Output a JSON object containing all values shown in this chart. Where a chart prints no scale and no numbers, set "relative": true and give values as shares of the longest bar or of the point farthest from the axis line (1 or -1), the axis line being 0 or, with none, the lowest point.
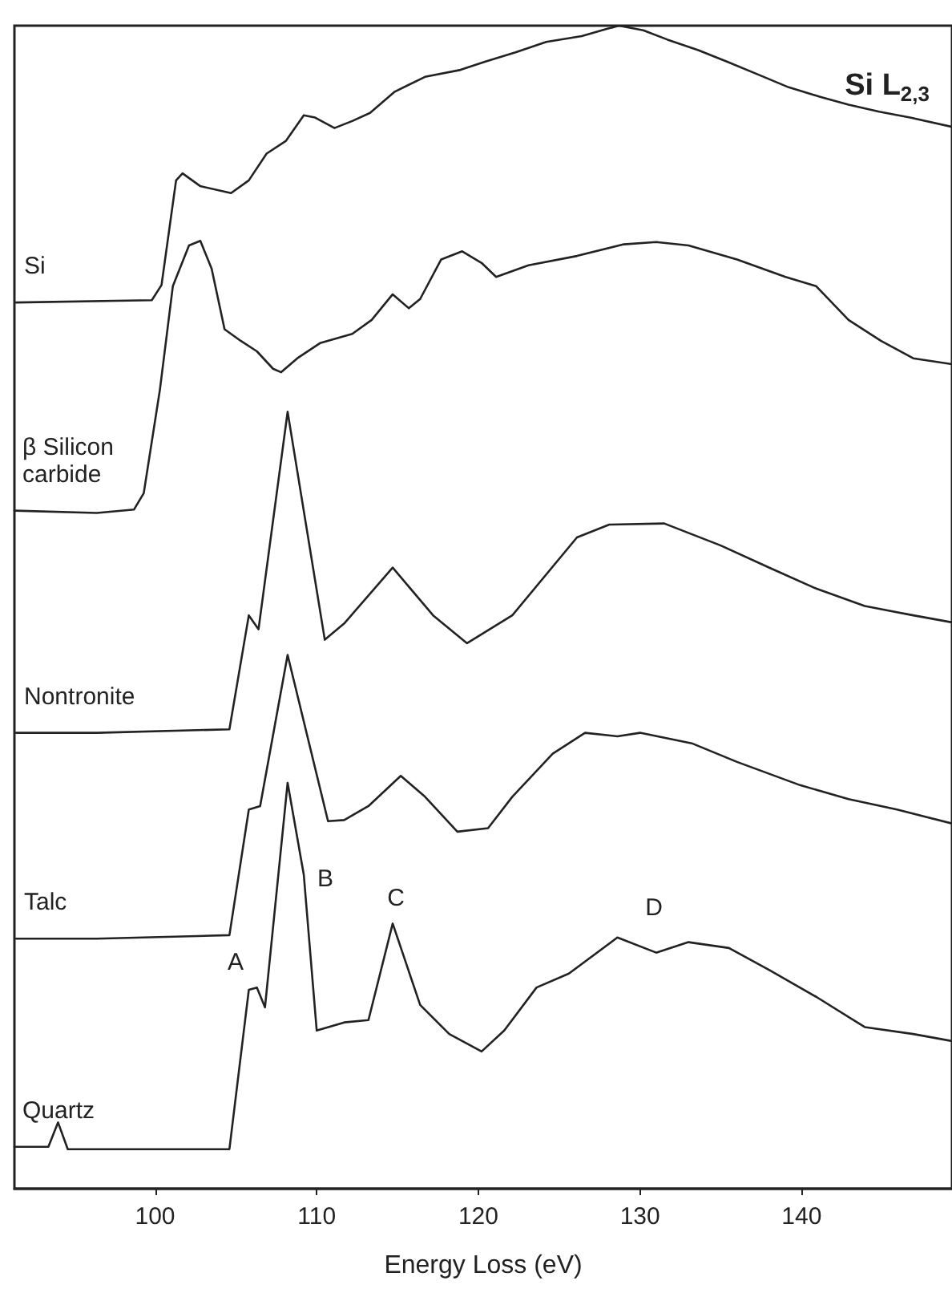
{
  "chart_data": {
    "type": "line",
    "title": "Si L$_{2,3}$",
    "xlabel": "Energy Loss (eV)",
    "relative": true,
    "xlim": [
      91.3,
      149.3
    ],
    "xticks": [
      100,
      110,
      120,
      130,
      140
    ],
    "grid": false,
    "legend": false,
    "marker": "none",
    "line_style": "solid",
    "annotations": [
      "A",
      "B",
      "C",
      "D"
    ],
    "series": [
      {
        "name": "Si",
        "color": "#222222",
        "x": [
          91.4,
          99.8,
          100.4,
          101.3,
          101.7,
          102.8,
          104.7,
          105.8,
          106.9,
          108.1,
          109.2,
          109.9,
          111.1,
          112.2,
          113.3,
          114.8,
          116.7,
          118.9,
          120.4,
          122.3,
          124.2,
          126.4,
          127.9,
          128.7,
          130.2,
          131.7,
          133.6,
          135.4,
          137.3,
          139.2,
          141.1,
          142.9,
          144.8,
          146.7,
          149.3
        ],
        "values": [
          0.762,
          0.764,
          0.777,
          0.867,
          0.873,
          0.862,
          0.856,
          0.867,
          0.89,
          0.901,
          0.923,
          0.921,
          0.912,
          0.918,
          0.925,
          0.943,
          0.956,
          0.962,
          0.969,
          0.977,
          0.986,
          0.991,
          0.997,
          1.0,
          0.996,
          0.988,
          0.979,
          0.969,
          0.958,
          0.947,
          0.939,
          0.932,
          0.926,
          0.921,
          0.913
        ]
      },
      {
        "name": "β Silicon carbide",
        "color": "#222222",
        "x": [
          91.3,
          96.4,
          98.7,
          99.3,
          100.3,
          101.1,
          102.1,
          102.8,
          103.5,
          104.3,
          105.3,
          106.3,
          107.3,
          107.8,
          108.8,
          110.2,
          112.2,
          113.4,
          114.7,
          115.7,
          116.4,
          117.7,
          119.0,
          120.2,
          121.1,
          123.1,
          126.1,
          129.0,
          131.0,
          133.0,
          136.0,
          139.0,
          140.9,
          142.9,
          144.9,
          146.9,
          149.3
        ],
        "values": [
          0.583,
          0.581,
          0.584,
          0.598,
          0.687,
          0.776,
          0.811,
          0.815,
          0.791,
          0.739,
          0.729,
          0.72,
          0.705,
          0.702,
          0.714,
          0.727,
          0.735,
          0.747,
          0.769,
          0.757,
          0.765,
          0.799,
          0.806,
          0.796,
          0.784,
          0.794,
          0.802,
          0.812,
          0.814,
          0.811,
          0.799,
          0.784,
          0.776,
          0.747,
          0.729,
          0.714,
          0.709
        ]
      },
      {
        "name": "Nontronite",
        "color": "#222222",
        "x": [
          91.4,
          96.4,
          104.6,
          105.8,
          106.4,
          108.2,
          110.5,
          111.7,
          114.7,
          117.2,
          119.3,
          122.1,
          126.1,
          128.1,
          131.5,
          135.0,
          138.0,
          140.9,
          143.9,
          146.9,
          149.3
        ],
        "values": [
          0.392,
          0.392,
          0.395,
          0.493,
          0.481,
          0.668,
          0.472,
          0.486,
          0.534,
          0.493,
          0.469,
          0.493,
          0.56,
          0.571,
          0.572,
          0.553,
          0.534,
          0.516,
          0.501,
          0.493,
          0.487
        ]
      },
      {
        "name": "Talc",
        "color": "#222222",
        "x": [
          91.4,
          96.4,
          104.6,
          105.8,
          106.5,
          108.2,
          110.7,
          111.7,
          113.2,
          115.2,
          116.7,
          118.7,
          120.6,
          122.1,
          124.6,
          126.6,
          128.6,
          130.0,
          133.2,
          136.0,
          139.9,
          142.9,
          145.9,
          149.3
        ],
        "values": [
          0.215,
          0.215,
          0.218,
          0.326,
          0.329,
          0.459,
          0.316,
          0.317,
          0.329,
          0.355,
          0.337,
          0.307,
          0.31,
          0.337,
          0.374,
          0.392,
          0.389,
          0.392,
          0.383,
          0.367,
          0.347,
          0.335,
          0.326,
          0.314
        ]
      },
      {
        "name": "Quartz",
        "color": "#222222",
        "x": [
          91.3,
          93.4,
          94.0,
          94.6,
          104.6,
          105.8,
          106.3,
          106.8,
          108.2,
          109.2,
          110.0,
          111.7,
          113.2,
          114.7,
          116.4,
          118.2,
          120.2,
          121.6,
          123.6,
          125.6,
          128.6,
          131.0,
          133.0,
          135.5,
          138.0,
          140.9,
          143.9,
          146.9,
          149.3
        ],
        "values": [
          0.036,
          0.036,
          0.057,
          0.034,
          0.034,
          0.171,
          0.173,
          0.156,
          0.349,
          0.27,
          0.136,
          0.143,
          0.145,
          0.228,
          0.158,
          0.133,
          0.118,
          0.136,
          0.173,
          0.185,
          0.216,
          0.203,
          0.212,
          0.207,
          0.188,
          0.165,
          0.139,
          0.133,
          0.127
        ]
      }
    ]
  }
}
